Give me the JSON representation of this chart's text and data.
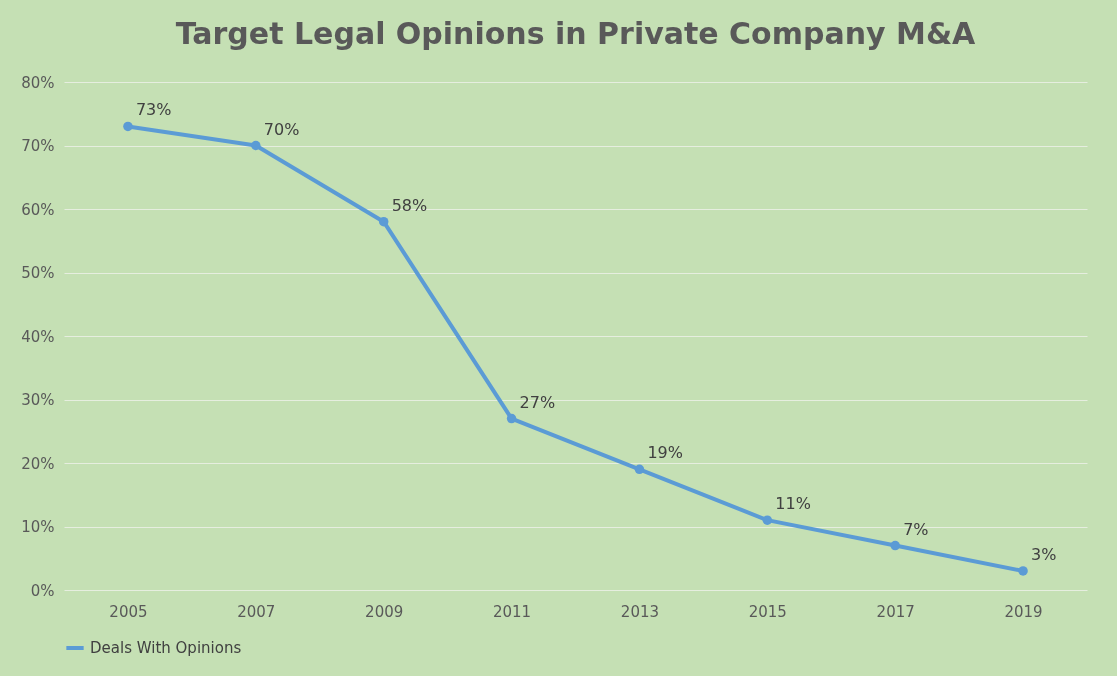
{
  "chart_data": {
    "type": "line",
    "title": "Target Legal Opinions in Private Company M&A",
    "categories": [
      "2005",
      "2007",
      "2009",
      "2011",
      "2013",
      "2015",
      "2017",
      "2019"
    ],
    "series": [
      {
        "name": "Deals With Opinions",
        "color": "#5b9bd5",
        "values": [
          73,
          70,
          58,
          27,
          19,
          11,
          7,
          3
        ],
        "value_labels": [
          "73%",
          "70%",
          "58%",
          "27%",
          "19%",
          "11%",
          "7%",
          "3%"
        ]
      }
    ],
    "ylim": [
      0,
      80
    ],
    "yticks": [
      {
        "value": 0,
        "label": "0%"
      },
      {
        "value": 10,
        "label": "10%"
      },
      {
        "value": 20,
        "label": "20%"
      },
      {
        "value": 30,
        "label": "30%"
      },
      {
        "value": 40,
        "label": "40%"
      },
      {
        "value": 50,
        "label": "50%"
      },
      {
        "value": 60,
        "label": "60%"
      },
      {
        "value": 70,
        "label": "70%"
      },
      {
        "value": 80,
        "label": "80%"
      }
    ],
    "grid": "y",
    "legend": "bottom",
    "marker": "circle",
    "line_style": "solid"
  }
}
